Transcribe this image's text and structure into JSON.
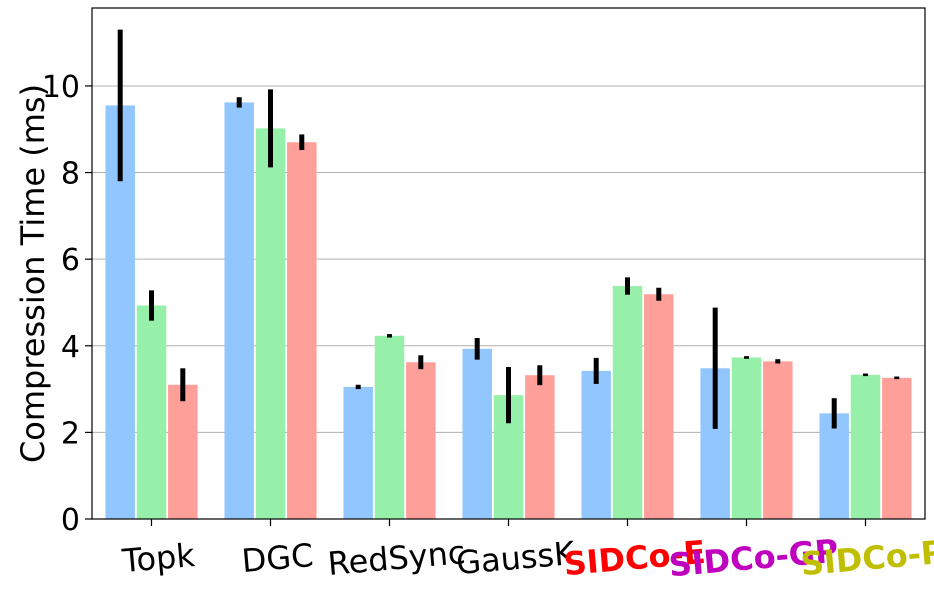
{
  "chart_data": {
    "type": "bar",
    "title": "",
    "xlabel": "",
    "ylabel": "Compression Time (ms)",
    "ylim": [
      0,
      11.8
    ],
    "yticks": [
      0,
      2,
      4,
      6,
      8,
      10
    ],
    "grid": "y",
    "categories": [
      "Topk",
      "DGC",
      "RedSync",
      "GaussK",
      "SIDCo-E",
      "SIDCo-GP",
      "SIDCo-P"
    ],
    "category_colors": [
      "#000000",
      "#000000",
      "#000000",
      "#000000",
      "#ff0000",
      "#bf00bf",
      "#bfbf00"
    ],
    "category_bold": [
      false,
      false,
      false,
      false,
      true,
      true,
      true
    ],
    "series": [
      {
        "color": "#92c6ff",
        "values": [
          9.55,
          9.62,
          3.05,
          3.93,
          3.42,
          3.48,
          2.44
        ],
        "errors": [
          1.75,
          0.12,
          0.05,
          0.25,
          0.3,
          1.4,
          0.35
        ]
      },
      {
        "color": "#97f0aa",
        "values": [
          4.93,
          9.02,
          4.23,
          2.86,
          5.38,
          3.73,
          3.33
        ],
        "errors": [
          0.35,
          0.9,
          0.04,
          0.65,
          0.2,
          0.03,
          0.03
        ]
      },
      {
        "color": "#ff9f9a",
        "values": [
          3.1,
          8.7,
          3.62,
          3.32,
          5.19,
          3.64,
          3.26
        ],
        "errors": [
          0.38,
          0.18,
          0.16,
          0.23,
          0.15,
          0.05,
          0.03
        ]
      }
    ]
  }
}
